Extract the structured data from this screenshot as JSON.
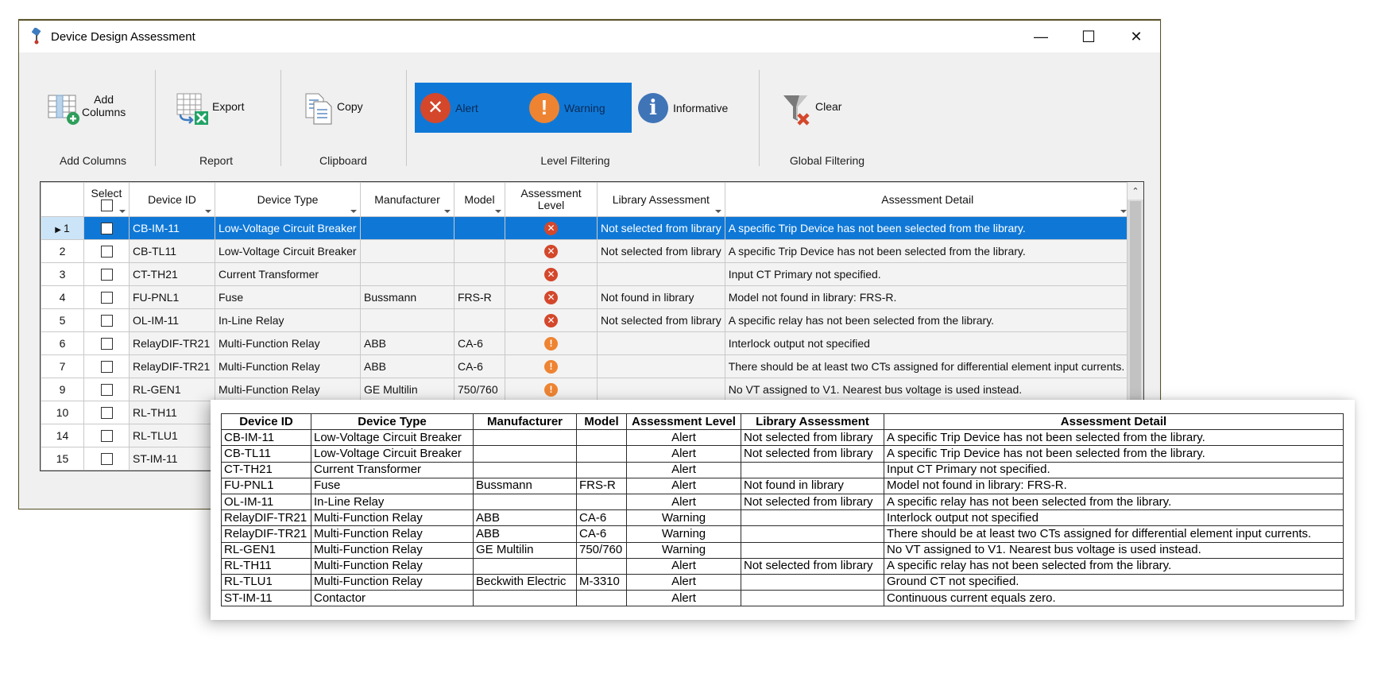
{
  "window": {
    "title": "Device Design Assessment",
    "controls": {
      "minimize": "—",
      "maximize": "☐",
      "close": "✕"
    }
  },
  "ribbon": {
    "groups": [
      {
        "label": "Add Columns",
        "buttons": [
          {
            "label_line1": "Add",
            "label_line2": "Columns",
            "icon": "add-columns-icon"
          }
        ]
      },
      {
        "label": "Report",
        "buttons": [
          {
            "label": "Export",
            "icon": "excel-export-icon"
          }
        ]
      },
      {
        "label": "Clipboard",
        "buttons": [
          {
            "label": "Copy",
            "icon": "copy-icon"
          }
        ]
      },
      {
        "label": "Level Filtering",
        "buttons": [
          {
            "label": "Alert",
            "icon": "alert-icon",
            "active": true,
            "color": "#d4472b",
            "glyph": "✕"
          },
          {
            "label": "Warning",
            "icon": "warning-icon",
            "active": true,
            "color": "#ee8432",
            "glyph": "!"
          },
          {
            "label": "Informative",
            "icon": "info-icon",
            "active": false,
            "color": "#3f74b7",
            "glyph": "i"
          }
        ]
      },
      {
        "label": "Global Filtering",
        "buttons": [
          {
            "label": "Clear",
            "icon": "clear-filter-icon"
          }
        ]
      }
    ]
  },
  "grid": {
    "columns": [
      "",
      "Select",
      "Device ID",
      "Device Type",
      "Manufacturer",
      "Model",
      "Assessment Level",
      "Library Assessment",
      "Assessment Detail"
    ],
    "rows": [
      {
        "num": "1",
        "device_id": "CB-IM-11",
        "device_type": "Low-Voltage Circuit Breaker",
        "manufacturer": "",
        "model": "",
        "level": "alert",
        "library": "Not selected from library",
        "detail": "A specific Trip Device has not been selected from the library.",
        "selected": true
      },
      {
        "num": "2",
        "device_id": "CB-TL11",
        "device_type": "Low-Voltage Circuit Breaker",
        "manufacturer": "",
        "model": "",
        "level": "alert",
        "library": "Not selected from library",
        "detail": "A specific Trip Device has not been selected from the library."
      },
      {
        "num": "3",
        "device_id": "CT-TH21",
        "device_type": "Current Transformer",
        "manufacturer": "",
        "model": "",
        "level": "alert",
        "library": "",
        "detail": "Input CT Primary not specified."
      },
      {
        "num": "4",
        "device_id": "FU-PNL1",
        "device_type": "Fuse",
        "manufacturer": "Bussmann",
        "model": "FRS-R",
        "level": "alert",
        "library": "Not found in library",
        "detail": "Model not found in library: FRS-R."
      },
      {
        "num": "5",
        "device_id": "OL-IM-11",
        "device_type": "In-Line Relay",
        "manufacturer": "",
        "model": "",
        "level": "alert",
        "library": "Not selected from library",
        "detail": "A specific relay has not been selected from the library."
      },
      {
        "num": "6",
        "device_id": "RelayDIF-TR21",
        "device_type": "Multi-Function Relay",
        "manufacturer": "ABB",
        "model": "CA-6",
        "level": "warning",
        "library": "",
        "detail": "Interlock output not specified"
      },
      {
        "num": "7",
        "device_id": "RelayDIF-TR21",
        "device_type": "Multi-Function Relay",
        "manufacturer": "ABB",
        "model": "CA-6",
        "level": "warning",
        "library": "",
        "detail": "There should be at least two CTs assigned for differential element input currents."
      },
      {
        "num": "9",
        "device_id": "RL-GEN1",
        "device_type": "Multi-Function Relay",
        "manufacturer": "GE Multilin",
        "model": "750/760",
        "level": "warning",
        "library": "",
        "detail": "No VT assigned to V1. Nearest bus voltage is used instead."
      },
      {
        "num": "10",
        "device_id": "RL-TH11"
      },
      {
        "num": "14",
        "device_id": "RL-TLU1"
      },
      {
        "num": "15",
        "device_id": "ST-IM-11"
      }
    ]
  },
  "export_table": {
    "columns": [
      "Device ID",
      "Device Type",
      "Manufacturer",
      "Model",
      "Assessment Level",
      "Library Assessment",
      "Assessment Detail"
    ],
    "rows": [
      [
        "CB-IM-11",
        "Low-Voltage Circuit Breaker",
        "",
        "",
        "Alert",
        "Not selected from library",
        "A specific Trip Device has not been selected from the library."
      ],
      [
        "CB-TL11",
        "Low-Voltage Circuit Breaker",
        "",
        "",
        "Alert",
        "Not selected from library",
        "A specific Trip Device has not been selected from the library."
      ],
      [
        "CT-TH21",
        "Current Transformer",
        "",
        "",
        "Alert",
        "",
        "Input CT Primary not specified."
      ],
      [
        "FU-PNL1",
        "Fuse",
        "Bussmann",
        "FRS-R",
        "Alert",
        "Not found in library",
        "Model not found in library: FRS-R."
      ],
      [
        "OL-IM-11",
        "In-Line Relay",
        "",
        "",
        "Alert",
        "Not selected from library",
        "A specific relay has not been selected from the library."
      ],
      [
        "RelayDIF-TR21",
        "Multi-Function Relay",
        "ABB",
        "CA-6",
        "Warning",
        "",
        "Interlock output not specified"
      ],
      [
        "RelayDIF-TR21",
        "Multi-Function Relay",
        "ABB",
        "CA-6",
        "Warning",
        "",
        "There should be at least two CTs assigned for differential element input currents."
      ],
      [
        "RL-GEN1",
        "Multi-Function Relay",
        "GE Multilin",
        "750/760",
        "Warning",
        "",
        "No VT assigned to V1. Nearest bus voltage is used instead."
      ],
      [
        "RL-TH11",
        "Multi-Function Relay",
        "",
        "",
        "Alert",
        "Not selected from library",
        "A specific relay has not been selected from the library."
      ],
      [
        "RL-TLU1",
        "Multi-Function Relay",
        "Beckwith Electric",
        "M-3310",
        "Alert",
        "",
        "Ground CT not specified."
      ],
      [
        "ST-IM-11",
        "Contactor",
        "",
        "",
        "Alert",
        "",
        "Continuous current equals zero."
      ]
    ]
  },
  "colors": {
    "selection": "#0f78d7",
    "alert": "#d4472b",
    "warning": "#ee8432",
    "info": "#3f74b7"
  }
}
